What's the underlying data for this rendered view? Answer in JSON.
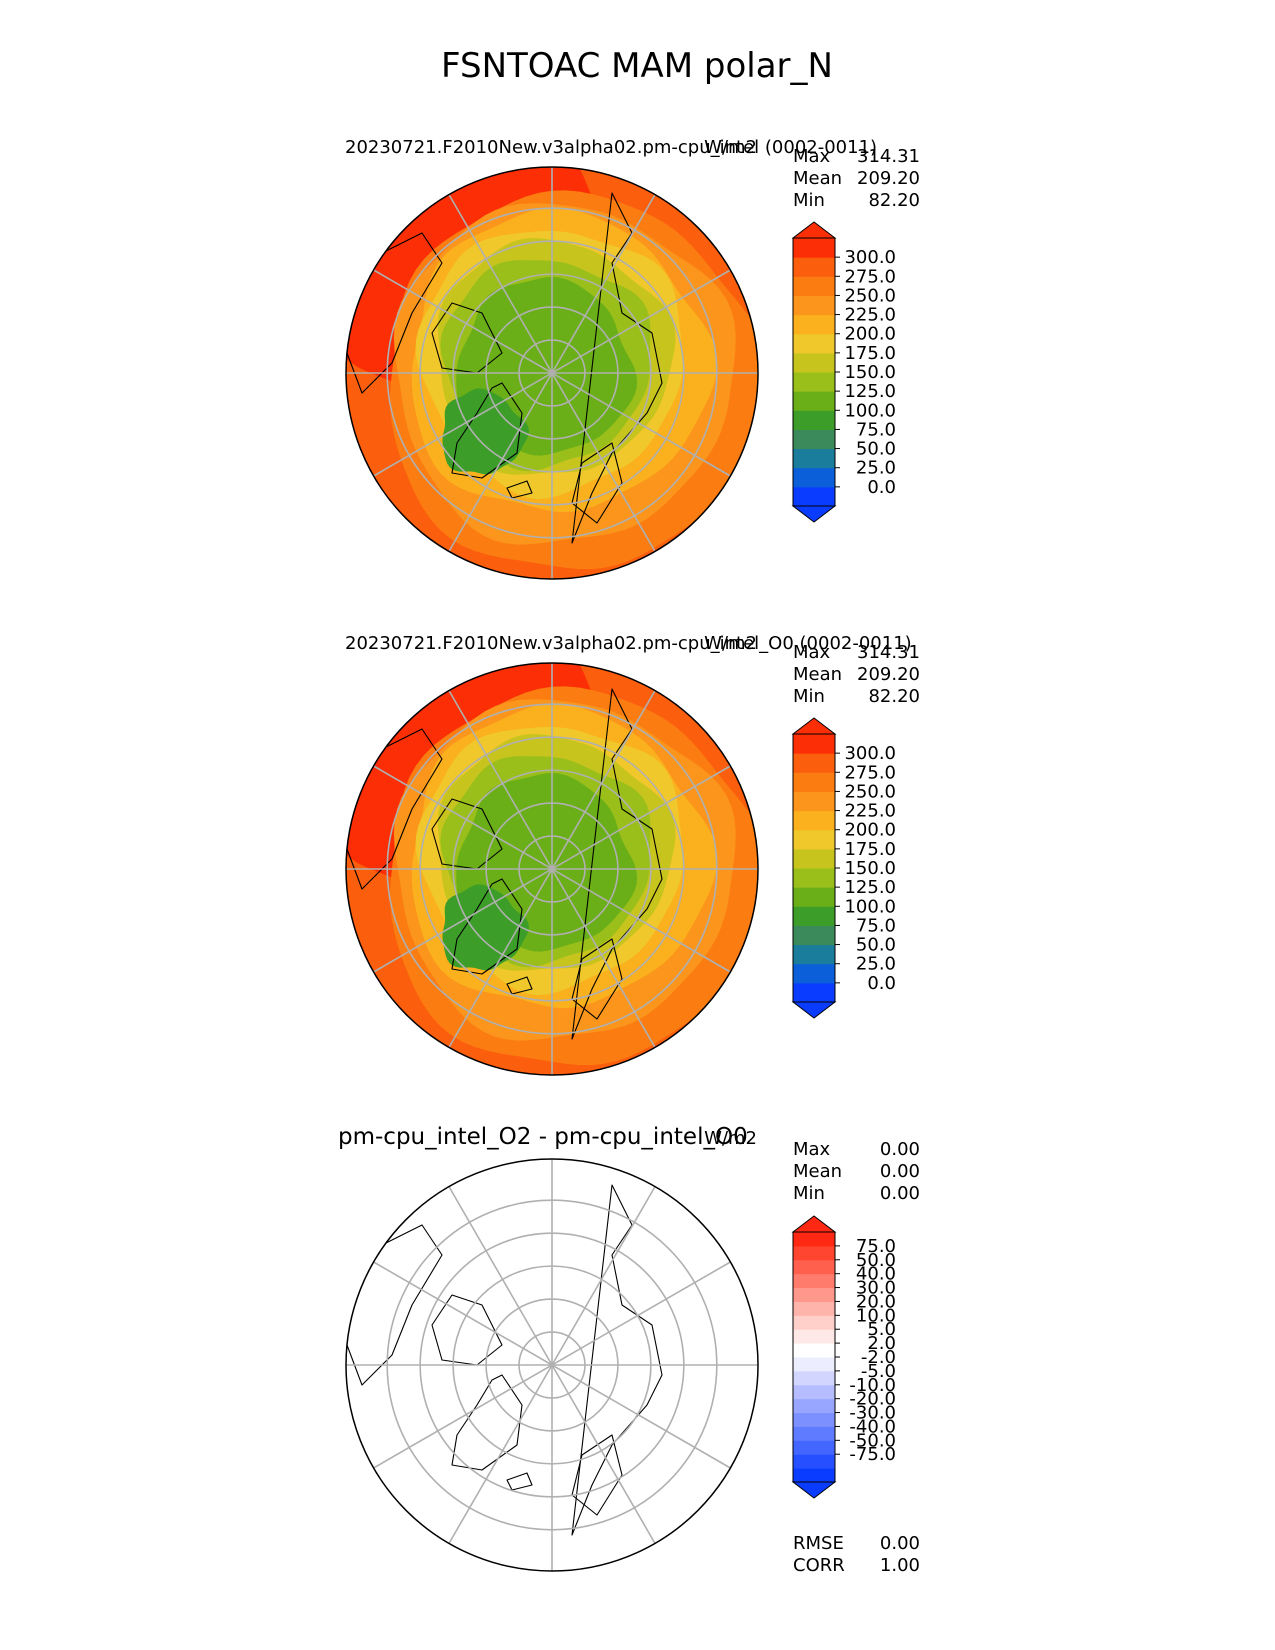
{
  "figure": {
    "title": "FSNTOAC MAM polar_N"
  },
  "colors": {
    "model_levels": [
      "#0a3cff",
      "#0b5fd9",
      "#1a7d9c",
      "#3a8a5c",
      "#3c9e28",
      "#6aaf18",
      "#9abf1a",
      "#c8c41e",
      "#f0c82c",
      "#fbb01d",
      "#fb951b",
      "#fb7d12",
      "#fb5e0c",
      "#fb2e05"
    ],
    "diff_levels": [
      "#0a3cff",
      "#2650ff",
      "#4266ff",
      "#5f7bff",
      "#7c90ff",
      "#98a6ff",
      "#b5bcff",
      "#d2d6ff",
      "#eceeff",
      "#ffffff",
      "#ffe9e6",
      "#ffcfc9",
      "#ffb4ab",
      "#ff988c",
      "#ff7c6d",
      "#ff604e",
      "#ff4430",
      "#ff2812"
    ],
    "grid": "#b0b0b0",
    "coast": "#000000"
  },
  "panels": [
    {
      "id": "test",
      "title": "20230721.F2010New.v3alpha02.pm-cpu_intel (0002-0011)",
      "units": "W/m2",
      "stats": [
        {
          "label": "Max",
          "value": "314.31"
        },
        {
          "label": "Mean",
          "value": "209.20"
        },
        {
          "label": "Min",
          "value": "82.20"
        }
      ],
      "colorbar_ticks": [
        "300.0",
        "275.0",
        "250.0",
        "225.0",
        "200.0",
        "175.0",
        "150.0",
        "125.0",
        "100.0",
        "75.0",
        "50.0",
        "25.0",
        "0.0"
      ],
      "fill": "field"
    },
    {
      "id": "reference",
      "title": "20230721.F2010New.v3alpha02.pm-cpu_intel_O0 (0002-0011)",
      "units": "W/m2",
      "stats": [
        {
          "label": "Max",
          "value": "314.31"
        },
        {
          "label": "Mean",
          "value": "209.20"
        },
        {
          "label": "Min",
          "value": "82.20"
        }
      ],
      "colorbar_ticks": [
        "300.0",
        "275.0",
        "250.0",
        "225.0",
        "200.0",
        "175.0",
        "150.0",
        "125.0",
        "100.0",
        "75.0",
        "50.0",
        "25.0",
        "0.0"
      ],
      "fill": "field"
    },
    {
      "id": "difference",
      "title": "pm-cpu_intel_O2 - pm-cpu_intel_O0",
      "units": "W/m2",
      "stats": [
        {
          "label": "Max",
          "value": "0.00"
        },
        {
          "label": "Mean",
          "value": "0.00"
        },
        {
          "label": "Min",
          "value": "0.00"
        }
      ],
      "colorbar_ticks": [
        "75.0",
        "50.0",
        "40.0",
        "30.0",
        "20.0",
        "10.0",
        "5.0",
        "2.0",
        "-2.0",
        "-5.0",
        "-10.0",
        "-20.0",
        "-30.0",
        "-40.0",
        "-50.0",
        "-75.0"
      ],
      "fill": "blank",
      "metrics": [
        {
          "label": "RMSE",
          "value": "0.00"
        },
        {
          "label": "CORR",
          "value": "1.00"
        }
      ]
    }
  ]
}
